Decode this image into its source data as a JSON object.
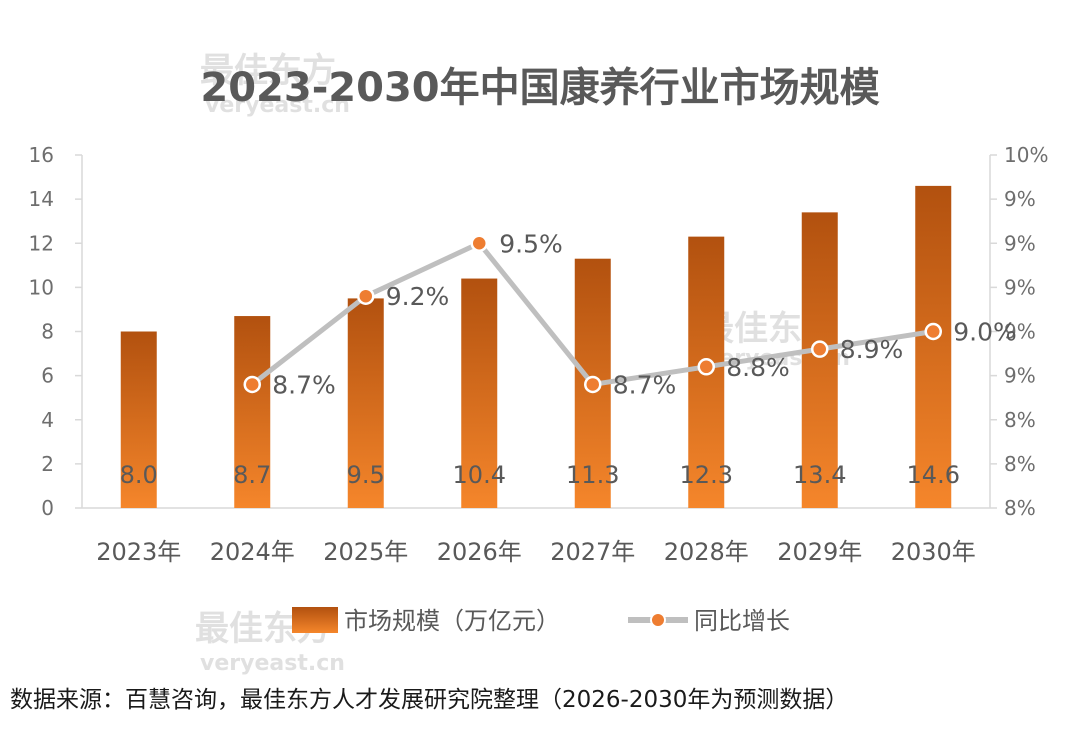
{
  "chart_data": {
    "type": "bar",
    "title": "2023-2030年中国康养行业市场规模",
    "categories": [
      "2023年",
      "2024年",
      "2025年",
      "2026年",
      "2027年",
      "2028年",
      "2029年",
      "2030年"
    ],
    "series": [
      {
        "name": "市场规模（万亿元）",
        "type": "bar",
        "axis": "left",
        "values": [
          8.0,
          8.7,
          9.5,
          10.4,
          11.3,
          12.3,
          13.4,
          14.6
        ],
        "labels": [
          "8.0",
          "8.7",
          "9.5",
          "10.4",
          "11.3",
          "12.3",
          "13.4",
          "14.6"
        ]
      },
      {
        "name": "同比增长",
        "type": "line",
        "axis": "right",
        "values": [
          null,
          8.7,
          9.2,
          9.5,
          8.7,
          8.8,
          8.9,
          9.0
        ],
        "labels": [
          null,
          "8.7%",
          "9.2%",
          "9.5%",
          "8.7%",
          "8.8%",
          "8.9%",
          "9.0%"
        ]
      }
    ],
    "left_axis": {
      "ylim": [
        0,
        16
      ],
      "ticks": [
        "0",
        "2",
        "4",
        "6",
        "8",
        "10",
        "12",
        "14",
        "16"
      ]
    },
    "right_axis": {
      "ylim": [
        8.0,
        10.0
      ],
      "ticks": [
        "8%",
        "8%",
        "8%",
        "9%",
        "9%",
        "9%",
        "9%",
        "9%",
        "10%"
      ]
    },
    "grid": false,
    "legend_position": "bottom",
    "colors": {
      "bar_light": "#f5862b",
      "bar_dark": "#b2510f",
      "line": "#bfbfbf",
      "marker": "#ee7d31"
    }
  },
  "source_note": "数据来源：百慧咨询，最佳东方人才发展研究院整理（2026-2030年为预测数据）",
  "watermark": {
    "brand": "最佳东方",
    "site": "veryeast.cn"
  }
}
